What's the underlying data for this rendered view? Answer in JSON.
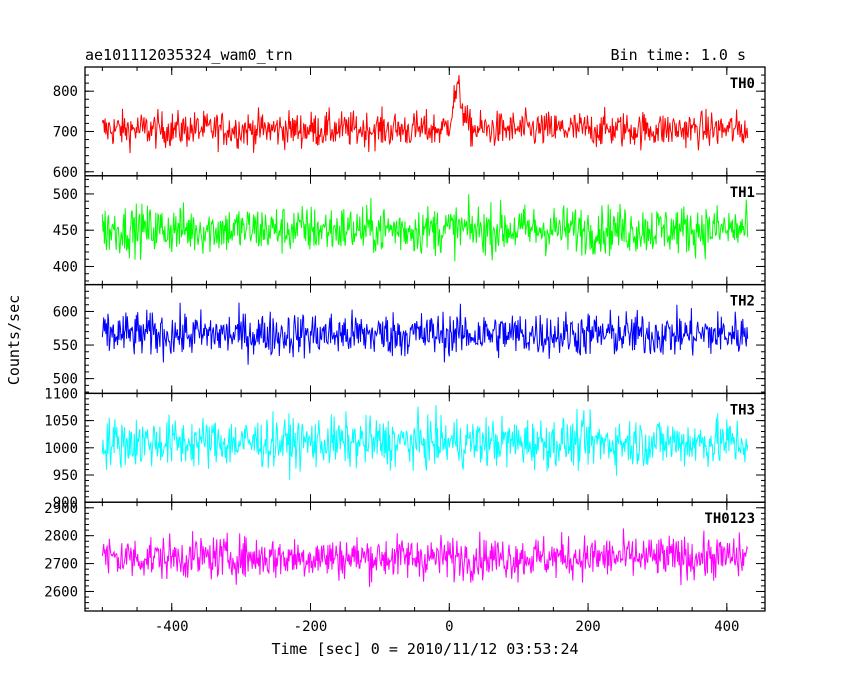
{
  "header": {
    "source": "ae101112035324_wam0_trn",
    "bin_time": "Bin time: 1.0 s"
  },
  "chart_data": {
    "type": "line",
    "xlabel": "Time [sec] 0 = 2010/11/12 03:53:24",
    "ylabel": "Counts/sec",
    "xlim": [
      -525,
      455
    ],
    "x_ticks": [
      -400,
      -200,
      0,
      200,
      400
    ],
    "x_range": [
      -500,
      430
    ],
    "bin_time_s": 1.0,
    "panels": [
      {
        "name": "TH0",
        "color": "#ff0000",
        "ylim": [
          590,
          860
        ],
        "y_ticks": [
          600,
          700,
          800
        ],
        "mean": 705,
        "noise": 32,
        "peak": {
          "center": 12,
          "width": 7,
          "height": 95
        }
      },
      {
        "name": "TH1",
        "color": "#00ff00",
        "ylim": [
          375,
          525
        ],
        "y_ticks": [
          400,
          450,
          500
        ],
        "mean": 451,
        "noise": 24
      },
      {
        "name": "TH2",
        "color": "#0000ff",
        "ylim": [
          478,
          640
        ],
        "y_ticks": [
          500,
          550,
          600
        ],
        "mean": 566,
        "noise": 24
      },
      {
        "name": "TH3",
        "color": "#00ffff",
        "ylim": [
          900,
          1100
        ],
        "y_ticks": [
          900,
          950,
          1000,
          1050,
          1100
        ],
        "mean": 1010,
        "noise": 33
      },
      {
        "name": "TH0123",
        "color": "#ff00ff",
        "ylim": [
          2530,
          2920
        ],
        "y_ticks": [
          2600,
          2700,
          2800,
          2900
        ],
        "mean": 2722,
        "noise": 55
      }
    ]
  }
}
